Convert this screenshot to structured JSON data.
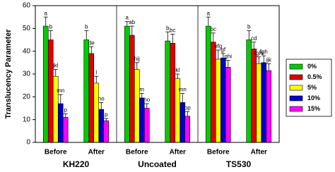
{
  "chart_data": {
    "type": "bar",
    "ylabel": "Translucency Parameter",
    "panels": [
      "KH220",
      "Uncoated",
      "TS530"
    ],
    "categories": [
      "Before",
      "After",
      "Before",
      "After",
      "Before",
      "After"
    ],
    "ylim": [
      0,
      60
    ],
    "yticks": [
      0,
      10,
      20,
      30,
      40,
      50,
      60
    ],
    "series": [
      {
        "name": "0%",
        "color": "#00cc00",
        "values": [
          51,
          45,
          51,
          44.5,
          51,
          45
        ],
        "errors": [
          4,
          4,
          2,
          4,
          4,
          4
        ],
        "letters": [
          "a",
          "b",
          "a",
          "b",
          "a",
          "b"
        ]
      },
      {
        "name": "0.5%",
        "color": "#e00000",
        "values": [
          45,
          39,
          47,
          43.5,
          44,
          41
        ],
        "errors": [
          4,
          3,
          4,
          4,
          4,
          3
        ],
        "letters": [
          "b",
          "de",
          "ab",
          "bc",
          "bc",
          "cd"
        ]
      },
      {
        "name": "5%",
        "color": "#ffff00",
        "values": [
          29,
          26,
          32,
          28,
          36.5,
          34.5
        ],
        "errors": [
          3,
          3,
          3,
          2,
          4,
          3
        ],
        "letters": [
          "jkl",
          "l",
          "hij",
          "kl",
          "efg",
          "fghi"
        ]
      },
      {
        "name": "10%",
        "color": "#0000cc",
        "values": [
          17,
          14.5,
          19.5,
          17.5,
          37,
          35
        ],
        "errors": [
          4,
          3,
          2,
          4,
          2,
          3
        ],
        "letters": [
          "mn",
          "no",
          "m",
          "mn",
          "gf",
          "fgh"
        ]
      },
      {
        "name": "15%",
        "color": "#ff00ff",
        "values": [
          11,
          9.5,
          15,
          11.5,
          33,
          31.5
        ],
        "errors": [
          1.5,
          1,
          2,
          2,
          3,
          3
        ],
        "letters": [
          "p",
          "p",
          "no",
          "op",
          "ghi",
          "ijk"
        ]
      }
    ]
  }
}
